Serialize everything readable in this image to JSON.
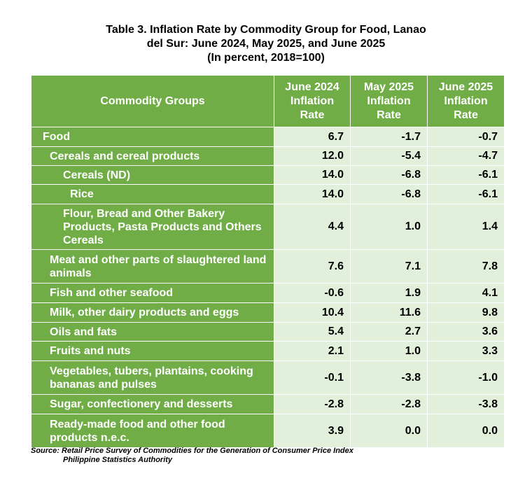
{
  "title": {
    "line1": "Table 3. Inflation Rate by Commodity Group for Food, Lanao",
    "line2": "del Sur: June 2024, May 2025, and June 2025",
    "line3": "(In percent, 2018=100)"
  },
  "headers": {
    "groups": "Commodity Groups",
    "col1": [
      "June 2024",
      "Inflation",
      "Rate"
    ],
    "col2": [
      "May 2025",
      "Inflation",
      "Rate"
    ],
    "col3": [
      "June 2025",
      "Inflation",
      "Rate"
    ]
  },
  "rows": [
    {
      "label": "Food",
      "v1": "6.7",
      "v2": "-1.7",
      "v3": "-0.7"
    },
    {
      "label": "Cereals and cereal products",
      "v1": "12.0",
      "v2": "-5.4",
      "v3": "-4.7"
    },
    {
      "label": "Cereals (ND)",
      "v1": "14.0",
      "v2": "-6.8",
      "v3": "-6.1"
    },
    {
      "label": "Rice",
      "v1": "14.0",
      "v2": "-6.8",
      "v3": "-6.1"
    },
    {
      "label": "Flour, Bread and Other Bakery Products, Pasta Products and Others Cereals",
      "v1": "4.4",
      "v2": "1.0",
      "v3": "1.4"
    },
    {
      "label": "Meat and other parts of slaughtered land animals",
      "v1": "7.6",
      "v2": "7.1",
      "v3": "7.8"
    },
    {
      "label": "Fish and other seafood",
      "v1": "-0.6",
      "v2": "1.9",
      "v3": "4.1"
    },
    {
      "label": "Milk, other dairy products and eggs",
      "v1": "10.4",
      "v2": "11.6",
      "v3": "9.8"
    },
    {
      "label": "Oils and fats",
      "v1": "5.4",
      "v2": "2.7",
      "v3": "3.6"
    },
    {
      "label": "Fruits and nuts",
      "v1": "2.1",
      "v2": "1.0",
      "v3": "3.3"
    },
    {
      "label": "Vegetables, tubers, plantains, cooking bananas and pulses",
      "v1": "-0.1",
      "v2": "-3.8",
      "v3": "-1.0"
    },
    {
      "label": "Sugar, confectionery and desserts",
      "v1": "-2.8",
      "v2": "-2.8",
      "v3": "-3.8"
    },
    {
      "label": "Ready-made food and other food products n.e.c.",
      "v1": "3.9",
      "v2": "0.0",
      "v3": "0.0"
    }
  ],
  "source": {
    "line1": "Source: Retail Price Survey of Commodities for the Generation of Consumer Price Index",
    "line2": "Philippine Statistics Authority"
  }
}
